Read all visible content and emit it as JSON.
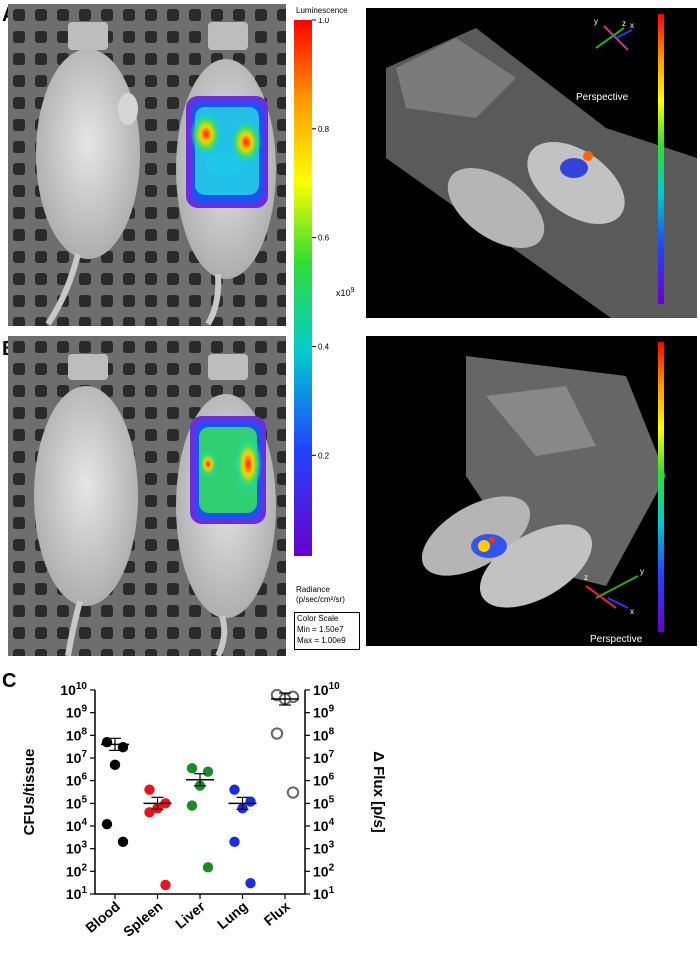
{
  "panels": {
    "a_letter": "A",
    "b_letter": "B",
    "c_letter": "C"
  },
  "colorbar": {
    "title": "Luminescence",
    "ticks": [
      "1.0",
      "0.8",
      "0.6",
      "0.4",
      "0.2"
    ],
    "tick_values": [
      1.0,
      0.8,
      0.6,
      0.4,
      0.2
    ],
    "multiplier_base": "x10",
    "multiplier_exp": "9",
    "radiance_label_1": "Radiance",
    "radiance_label_2": "(p/sec/cm²/sr)",
    "scale_title": "Color Scale",
    "scale_min": "Min = 1.50e7",
    "scale_max": "Max = 1.00e9"
  },
  "ct_views": {
    "perspective_label": "Perspective",
    "top_axes": [
      "y",
      "z",
      "x"
    ],
    "bottom_axes": [
      "z",
      "y",
      "x"
    ]
  },
  "colors": {
    "blood": "#000000",
    "spleen": "#e8141c",
    "liver": "#1a8a2a",
    "lung": "#1a2ee0",
    "flux": "#666666"
  },
  "chart_data": {
    "type": "scatter",
    "categories": [
      "Blood",
      "Spleen",
      "Liver",
      "Lung",
      "Flux"
    ],
    "ylabel": "CFUs/tissue",
    "y2label": "Δ Flux [p/s]",
    "yscale": "log",
    "ylim": [
      10,
      10000000000
    ],
    "ytick_exponents": [
      1,
      2,
      3,
      4,
      5,
      6,
      7,
      8,
      9,
      10
    ],
    "series": [
      {
        "category": "Blood",
        "values": [
          50000000,
          30000000,
          5000000,
          12000,
          2000
        ],
        "mean": 40000000
      },
      {
        "category": "Spleen",
        "values": [
          400000,
          100000,
          60000,
          40000,
          25
        ],
        "mean": 100000
      },
      {
        "category": "Liver",
        "values": [
          3500000,
          2500000,
          600000,
          80000,
          150
        ],
        "mean": 1100000
      },
      {
        "category": "Lung",
        "values": [
          400000,
          120000,
          60000,
          2000,
          30
        ],
        "mean": 100000
      },
      {
        "category": "Flux",
        "values": [
          6000000000,
          5000000000,
          4000000000,
          120000000,
          300000
        ],
        "mean": 4000000000,
        "hollow": true
      }
    ]
  }
}
